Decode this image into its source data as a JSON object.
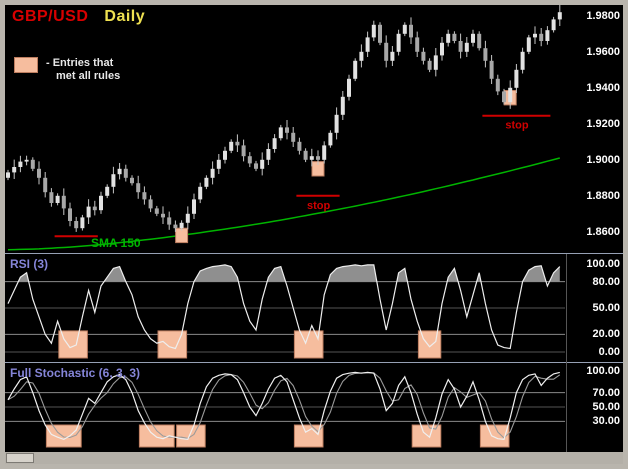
{
  "window": {
    "title_symbol": "GBP/USD",
    "title_timeframe": "Daily"
  },
  "legend": {
    "line1": "- Entries that",
    "line2": "met all rules"
  },
  "price_panel": {
    "sma_label": "SMA 150",
    "y_ticks": [
      {
        "label": "1.9800",
        "value": 1.98
      },
      {
        "label": "1.9600",
        "value": 1.96
      },
      {
        "label": "1.9400",
        "value": 1.94
      },
      {
        "label": "1.9200",
        "value": 1.92
      },
      {
        "label": "1.9000",
        "value": 1.9
      },
      {
        "label": "1.8800",
        "value": 1.88
      },
      {
        "label": "1.8600",
        "value": 1.86
      }
    ]
  },
  "rsi_panel": {
    "label": "RSI (3)",
    "y_ticks": [
      {
        "label": "100.00",
        "value": 100
      },
      {
        "label": "80.00",
        "value": 80
      },
      {
        "label": "50.00",
        "value": 50
      },
      {
        "label": "20.00",
        "value": 20
      },
      {
        "label": "0.00",
        "value": 0
      }
    ]
  },
  "stoch_panel": {
    "label": "Full Stochastic (6, 3, 3)",
    "y_ticks": [
      {
        "label": "100.00",
        "value": 100
      },
      {
        "label": "70.00",
        "value": 70
      },
      {
        "label": "50.00",
        "value": 50
      },
      {
        "label": "30.00",
        "value": 30
      }
    ]
  },
  "colors": {
    "frame": "#b9b5ad",
    "screen_bg": "#000000",
    "title_symbol": "#d80000",
    "title_timeframe": "#eee051",
    "panel_label": "#8585d8",
    "axis_text": "#ffffff",
    "sma": "#00b400",
    "stop": "#d00000",
    "entry_fill": "#f6bd9e",
    "entry_border": "#bd7d5f",
    "candle_up": "#e2e2e2",
    "candle_down": "#a8a8a8",
    "wick": "#c6c6c6",
    "rsi_line": "#eeeeee",
    "rsi_fill": "#8f8f8f",
    "stoch_k": "#f0f0f0",
    "stoch_d": "#9a9a9a",
    "grid_major": "#8a8a8a",
    "grid_minor": "#555555",
    "divider": "#96a0b4",
    "scrollbar_track": "#b4b0a8",
    "scrollbar_thumb": "#d6d2ca"
  },
  "chart_data": [
    {
      "type": "candlestick",
      "title": "GBP/USD Daily",
      "pair": "GBP/USD",
      "timeframe": "Daily",
      "ylim": [
        1.848,
        1.986
      ],
      "y_tick_labels": [
        "1.9800",
        "1.9600",
        "1.9400",
        "1.9200",
        "1.9000",
        "1.8800",
        "1.8600"
      ],
      "open_first": 1.89,
      "closes": [
        1.893,
        1.896,
        1.899,
        1.9,
        1.895,
        1.89,
        1.882,
        1.876,
        1.88,
        1.873,
        1.866,
        1.862,
        1.868,
        1.874,
        1.872,
        1.88,
        1.885,
        1.892,
        1.895,
        1.89,
        1.887,
        1.882,
        1.878,
        1.873,
        1.87,
        1.868,
        1.864,
        1.862,
        1.865,
        1.87,
        1.878,
        1.885,
        1.89,
        1.895,
        1.9,
        1.905,
        1.91,
        1.908,
        1.902,
        1.898,
        1.895,
        1.9,
        1.906,
        1.912,
        1.918,
        1.915,
        1.91,
        1.905,
        1.9,
        1.902,
        1.9,
        1.908,
        1.915,
        1.925,
        1.935,
        1.945,
        1.955,
        1.96,
        1.968,
        1.975,
        1.965,
        1.955,
        1.96,
        1.97,
        1.975,
        1.968,
        1.96,
        1.955,
        1.95,
        1.958,
        1.965,
        1.97,
        1.966,
        1.96,
        1.965,
        1.97,
        1.962,
        1.955,
        1.945,
        1.938,
        1.932,
        1.94,
        1.95,
        1.96,
        1.968,
        1.97,
        1.966,
        1.972,
        1.978,
        1.982
      ],
      "sma150_points": [
        [
          0,
          1.85
        ],
        [
          5,
          1.8505
        ],
        [
          10,
          1.8515
        ],
        [
          15,
          1.8529
        ],
        [
          20,
          1.8547
        ],
        [
          25,
          1.8567
        ],
        [
          30,
          1.859
        ],
        [
          35,
          1.8615
        ],
        [
          40,
          1.8642
        ],
        [
          45,
          1.8671
        ],
        [
          50,
          1.8703
        ],
        [
          55,
          1.8736
        ],
        [
          60,
          1.8771
        ],
        [
          65,
          1.8808
        ],
        [
          70,
          1.8847
        ],
        [
          75,
          1.8888
        ],
        [
          80,
          1.893
        ],
        [
          85,
          1.8974
        ],
        [
          89,
          1.901
        ]
      ],
      "entries": [
        {
          "candle": 28,
          "price_top": 1.862,
          "price_bottom": 1.854
        },
        {
          "candle": 50,
          "price_top": 1.899,
          "price_bottom": 1.891
        },
        {
          "candle": 81,
          "price_top": 1.9385,
          "price_bottom": 1.9305
        }
      ],
      "stops": [
        {
          "from": 8,
          "to": 14,
          "price": 1.8575,
          "label": ""
        },
        {
          "from": 47,
          "to": 53,
          "price": 1.88,
          "label": "stop"
        },
        {
          "from": 77,
          "to": 87,
          "price": 1.9245,
          "label": "stop"
        }
      ]
    },
    {
      "type": "line",
      "name": "RSI (3)",
      "ylim": [
        0,
        100
      ],
      "overbought": 80,
      "oversold": 20,
      "y_tick_labels": [
        "100.00",
        "80.00",
        "50.00",
        "20.00",
        "0.00"
      ],
      "values": [
        55,
        70,
        85,
        90,
        60,
        40,
        20,
        10,
        35,
        15,
        5,
        8,
        40,
        70,
        45,
        75,
        85,
        95,
        97,
        80,
        65,
        40,
        25,
        15,
        10,
        12,
        6,
        4,
        20,
        55,
        80,
        92,
        95,
        97,
        98,
        99,
        97,
        85,
        55,
        35,
        25,
        60,
        85,
        95,
        97,
        75,
        50,
        25,
        10,
        30,
        15,
        65,
        88,
        95,
        97,
        98,
        99,
        98,
        99,
        99,
        60,
        25,
        55,
        90,
        95,
        60,
        35,
        15,
        6,
        12,
        55,
        85,
        95,
        70,
        40,
        65,
        90,
        55,
        25,
        8,
        5,
        4,
        45,
        80,
        93,
        97,
        98,
        75,
        90,
        97
      ],
      "signal_boxes": [
        {
          "from": 9,
          "to": 12
        },
        {
          "from": 25,
          "to": 28
        },
        {
          "from": 47,
          "to": 50
        },
        {
          "from": 67,
          "to": 69
        }
      ]
    },
    {
      "type": "line",
      "name": "Full Stochastic (6, 3, 3)",
      "ylim": [
        0,
        100
      ],
      "upper": 70,
      "lower": 30,
      "y_tick_labels": [
        "100.00",
        "70.00",
        "50.00",
        "30.00"
      ],
      "k_values": [
        60,
        75,
        88,
        92,
        70,
        45,
        25,
        12,
        8,
        5,
        10,
        18,
        40,
        62,
        55,
        70,
        85,
        92,
        95,
        88,
        70,
        45,
        28,
        15,
        8,
        6,
        10,
        8,
        6,
        5,
        25,
        55,
        78,
        90,
        94,
        96,
        95,
        88,
        70,
        50,
        38,
        55,
        75,
        90,
        94,
        85,
        60,
        35,
        15,
        20,
        12,
        45,
        72,
        90,
        95,
        97,
        98,
        97,
        98,
        97,
        75,
        45,
        55,
        80,
        92,
        70,
        40,
        15,
        8,
        35,
        68,
        88,
        75,
        50,
        65,
        85,
        60,
        30,
        10,
        6,
        5,
        35,
        70,
        88,
        94,
        96,
        80,
        90,
        96,
        98
      ],
      "signal_boxes": [
        {
          "from": 7,
          "to": 11
        },
        {
          "from": 22,
          "to": 26
        },
        {
          "from": 28,
          "to": 31
        },
        {
          "from": 47,
          "to": 50
        },
        {
          "from": 66,
          "to": 69
        },
        {
          "from": 77,
          "to": 80
        }
      ]
    }
  ]
}
